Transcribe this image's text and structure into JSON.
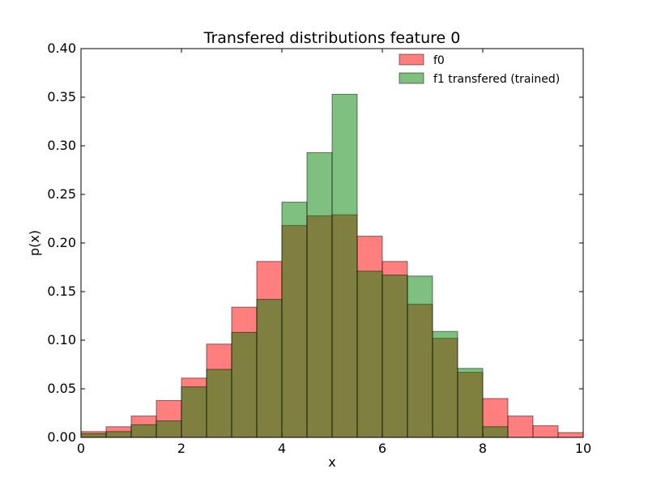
{
  "chart_data": {
    "type": "bar",
    "title": "Transfered distributions feature 0",
    "xlabel": "x",
    "ylabel": "p(x)",
    "xlim": [
      0,
      10
    ],
    "ylim": [
      0,
      0.4
    ],
    "grid": false,
    "legend_position": "top-right",
    "bin_width": 0.5,
    "x": [
      0,
      0.5,
      1,
      1.5,
      2,
      2.5,
      3,
      3.5,
      4,
      4.5,
      5,
      5.5,
      6,
      6.5,
      7,
      7.5,
      8,
      8.5,
      9,
      9.5
    ],
    "xticks": [
      "0",
      "2",
      "4",
      "6",
      "8",
      "10"
    ],
    "yticks": [
      "0.00",
      "0.05",
      "0.10",
      "0.15",
      "0.20",
      "0.25",
      "0.30",
      "0.35",
      "0.40"
    ],
    "series": [
      {
        "name": "f0",
        "color": "#ff0000",
        "opacity": 0.5,
        "values": [
          0.006,
          0.011,
          0.022,
          0.038,
          0.061,
          0.096,
          0.134,
          0.181,
          0.218,
          0.228,
          0.229,
          0.207,
          0.181,
          0.137,
          0.102,
          0.067,
          0.04,
          0.022,
          0.012,
          0.005
        ]
      },
      {
        "name": "f1 transfered (trained)",
        "color": "#008000",
        "opacity": 0.5,
        "values": [
          0.004,
          0.006,
          0.013,
          0.017,
          0.052,
          0.07,
          0.108,
          0.142,
          0.242,
          0.293,
          0.353,
          0.171,
          0.167,
          0.166,
          0.109,
          0.071,
          0.011,
          0.0,
          0.0,
          0.0
        ]
      }
    ]
  }
}
